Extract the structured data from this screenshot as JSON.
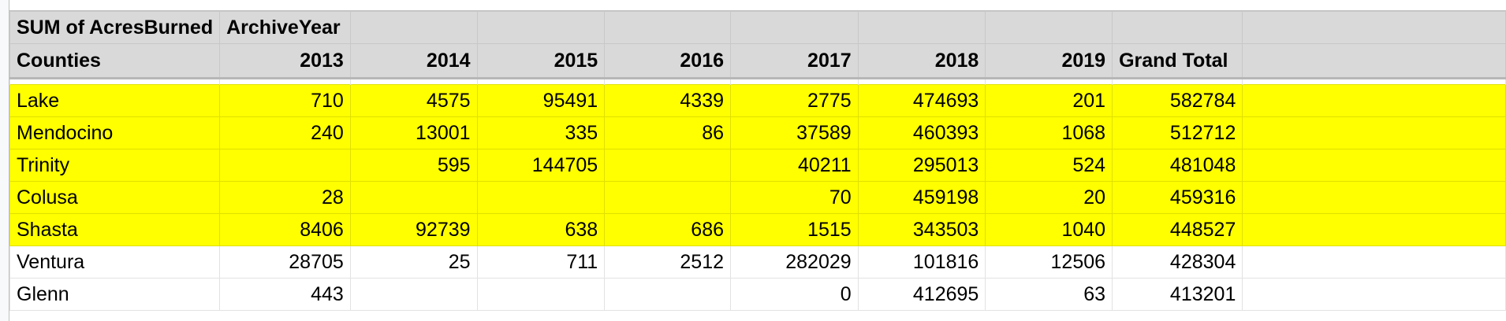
{
  "pivot": {
    "corner_label": "SUM of AcresBurned",
    "column_field": "ArchiveYear",
    "row_field": "Counties",
    "years": [
      "2013",
      "2014",
      "2015",
      "2016",
      "2017",
      "2018",
      "2019"
    ],
    "grand_total_label": "Grand Total",
    "highlight_color": "#ffff00",
    "rows": [
      {
        "county": "Lake",
        "highlighted": true,
        "values": [
          "710",
          "4575",
          "95491",
          "4339",
          "2775",
          "474693",
          "201"
        ],
        "total": "582784"
      },
      {
        "county": "Mendocino",
        "highlighted": true,
        "values": [
          "240",
          "13001",
          "335",
          "86",
          "37589",
          "460393",
          "1068"
        ],
        "total": "512712"
      },
      {
        "county": "Trinity",
        "highlighted": true,
        "values": [
          "",
          "595",
          "144705",
          "",
          "40211",
          "295013",
          "524"
        ],
        "total": "481048"
      },
      {
        "county": "Colusa",
        "highlighted": true,
        "values": [
          "28",
          "",
          "",
          "",
          "70",
          "459198",
          "20"
        ],
        "total": "459316"
      },
      {
        "county": "Shasta",
        "highlighted": true,
        "values": [
          "8406",
          "92739",
          "638",
          "686",
          "1515",
          "343503",
          "1040"
        ],
        "total": "448527"
      },
      {
        "county": "Ventura",
        "highlighted": false,
        "values": [
          "28705",
          "25",
          "711",
          "2512",
          "282029",
          "101816",
          "12506"
        ],
        "total": "428304"
      },
      {
        "county": "Glenn",
        "highlighted": false,
        "values": [
          "443",
          "",
          "",
          "",
          "0",
          "412695",
          "63"
        ],
        "total": "413201"
      }
    ]
  }
}
